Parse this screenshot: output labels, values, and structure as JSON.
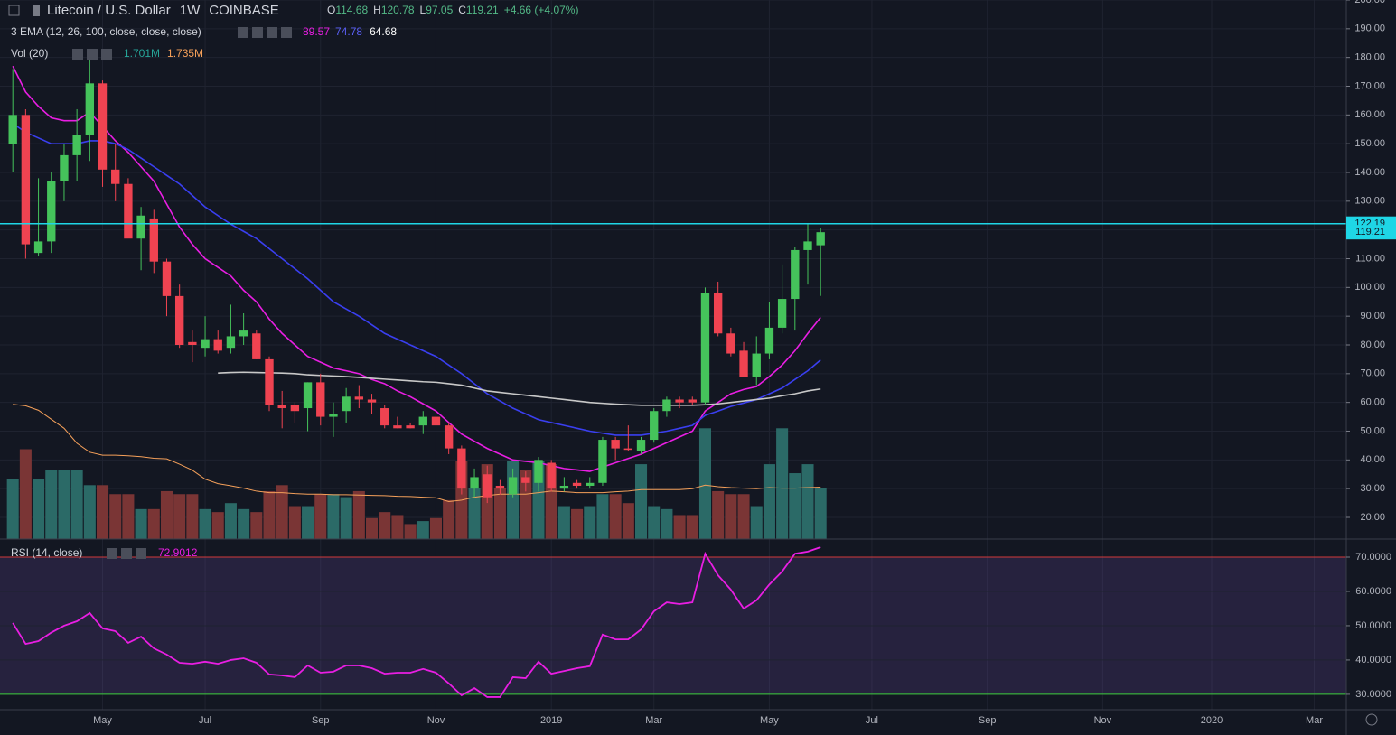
{
  "chart_data": [
    {
      "type": "candlestick",
      "title": "Litecoin / U.S. Dollar",
      "interval": "1W",
      "exchange": "COINBASE",
      "ohlc_labels": [
        "O",
        "H",
        "L",
        "C"
      ],
      "change": "+4.66 (+4.07%)",
      "indicator_label": "3 EMA (12, 26, 100, close, close, close)",
      "x": [
        0,
        1,
        2,
        3,
        4,
        5,
        6,
        7,
        8,
        9,
        10,
        11,
        12,
        13,
        14,
        15,
        16,
        17,
        18,
        19,
        20,
        21,
        22,
        23,
        24,
        25,
        26,
        27,
        28,
        29,
        30,
        31,
        32,
        33,
        34,
        35,
        36,
        37,
        38,
        39,
        40,
        41,
        42,
        43,
        44,
        45,
        46,
        47,
        48,
        49,
        50,
        51,
        52,
        53,
        54,
        55,
        56,
        57,
        58,
        59,
        60,
        61,
        62,
        63
      ],
      "xlim": [
        -1,
        104
      ],
      "xticks": [
        {
          "value": 7,
          "label": "May"
        },
        {
          "value": 15,
          "label": "Jul"
        },
        {
          "value": 24,
          "label": "Sep"
        },
        {
          "value": 33,
          "label": "Nov"
        },
        {
          "value": 42,
          "label": "2019"
        },
        {
          "value": 50,
          "label": "Mar"
        },
        {
          "value": 59,
          "label": "May"
        },
        {
          "value": 67,
          "label": "Jul"
        },
        {
          "value": 76,
          "label": "Sep"
        },
        {
          "value": 85,
          "label": "Nov"
        },
        {
          "value": 93.5,
          "label": "2020"
        },
        {
          "value": 101.5,
          "label": "Mar"
        }
      ],
      "open": [
        150,
        160,
        112,
        116,
        137,
        146,
        153,
        171,
        141,
        136,
        117,
        124,
        109,
        97,
        81,
        79,
        82,
        79,
        83,
        84,
        75,
        59,
        59,
        58,
        67,
        55,
        57,
        62,
        61,
        58,
        52,
        52,
        52,
        55,
        52,
        44,
        30,
        35,
        31,
        28,
        34,
        32,
        39,
        30,
        32,
        31,
        32,
        47,
        44,
        43,
        47,
        57,
        61,
        61,
        60,
        98,
        84,
        78,
        69,
        77,
        86,
        96,
        113,
        114.68
      ],
      "high": [
        176,
        162,
        138,
        140,
        150,
        162,
        180,
        172,
        150,
        138,
        128,
        127,
        110,
        101,
        85,
        90,
        85,
        94,
        91,
        85,
        76,
        64,
        60,
        67,
        70,
        60,
        65,
        66,
        63,
        59,
        55,
        53,
        57,
        57,
        53,
        45,
        37,
        38,
        33,
        37,
        36,
        41,
        40,
        34,
        33,
        34,
        48,
        48,
        52,
        48,
        58,
        62,
        62,
        62,
        100,
        102,
        86,
        81,
        83,
        95,
        108,
        114,
        122,
        120.78
      ],
      "low": [
        140,
        110,
        111,
        112,
        130,
        137,
        144,
        135,
        130,
        118,
        106,
        105,
        90,
        79,
        74,
        76,
        77,
        77,
        80,
        75,
        57,
        51,
        53,
        50,
        52,
        48,
        53,
        58,
        56,
        51,
        51,
        51,
        49,
        52,
        42,
        28,
        27,
        25,
        28,
        27,
        29,
        29,
        29,
        29,
        30,
        30,
        31,
        40,
        43,
        42,
        46,
        55,
        58,
        59,
        59,
        83,
        76,
        69,
        66,
        75,
        84,
        85,
        101,
        97.05
      ],
      "close": [
        160,
        115,
        116,
        137,
        146,
        153,
        171,
        141,
        136,
        117,
        125,
        109,
        97,
        80,
        80,
        82,
        78,
        83,
        85,
        75,
        59,
        58,
        57,
        67,
        55,
        56,
        62,
        61,
        60,
        52,
        51,
        51,
        55,
        52,
        44,
        30,
        34,
        27,
        30,
        34,
        32,
        40,
        30,
        31,
        31,
        32,
        47,
        44,
        43.5,
        47,
        57,
        61,
        60,
        60,
        98,
        84,
        77,
        69,
        77,
        86,
        96,
        113,
        116,
        119.21
      ],
      "up_color": "#45c35b",
      "down_color": "#ef4351",
      "ylim": [
        12.46,
        200
      ],
      "yticks": [
        {
          "value": 20,
          "label": "20.00"
        },
        {
          "value": 30,
          "label": "30.00"
        },
        {
          "value": 40,
          "label": "40.00"
        },
        {
          "value": 50,
          "label": "50.00"
        },
        {
          "value": 60,
          "label": "60.00"
        },
        {
          "value": 70,
          "label": "70.00"
        },
        {
          "value": 80,
          "label": "80.00"
        },
        {
          "value": 90,
          "label": "90.00"
        },
        {
          "value": 100,
          "label": "100.00"
        },
        {
          "value": 110,
          "label": "110.00"
        },
        {
          "value": 120,
          "label": "120.00"
        },
        {
          "value": 130,
          "label": "130.00"
        },
        {
          "value": 140,
          "label": "140.00"
        },
        {
          "value": 150,
          "label": "150.00"
        },
        {
          "value": 160,
          "label": "160.00"
        },
        {
          "value": 170,
          "label": "170.00"
        },
        {
          "value": 180,
          "label": "180.00"
        },
        {
          "value": 190,
          "label": "190.00"
        },
        {
          "value": 200,
          "label": "200.00"
        }
      ],
      "grid": true,
      "price_line": {
        "value": 122.19,
        "color": "#1fd6e6"
      },
      "ema": [
        {
          "color": "#e91ee3",
          "values": [
            177,
            168,
            163,
            159,
            158,
            158,
            161,
            156,
            151,
            147,
            142,
            137,
            129,
            121,
            115,
            110,
            107,
            104,
            99,
            95,
            89,
            84,
            80,
            76,
            74,
            72,
            71,
            70,
            68,
            66.5,
            64,
            62,
            59.5,
            57,
            53,
            49,
            46.5,
            44,
            42,
            40,
            39.5,
            39,
            38,
            37,
            36.5,
            36,
            37.5,
            39,
            40.5,
            42,
            44,
            46,
            48,
            50,
            57,
            60,
            63,
            64.5,
            65.5,
            69,
            73,
            78,
            84,
            89.57
          ]
        },
        {
          "color": "#3a3ff0",
          "values": [
            157,
            154,
            152,
            150,
            150,
            150,
            151,
            151,
            150,
            148,
            145,
            142,
            139,
            136,
            132,
            128,
            125,
            122,
            119.5,
            117,
            113.5,
            110,
            106.5,
            103,
            99,
            95,
            92.5,
            90,
            87,
            84,
            82,
            80,
            78,
            76,
            73,
            70,
            66.5,
            63,
            60.5,
            58,
            56,
            54,
            53,
            52,
            51,
            50,
            49.3,
            48.6,
            48.6,
            48.6,
            49.3,
            50,
            51,
            52,
            55.5,
            57,
            58.6,
            59.8,
            61,
            63,
            65,
            68,
            71,
            74.78
          ]
        },
        {
          "color": "#c8c8c8",
          "values": [
            null,
            null,
            null,
            null,
            null,
            null,
            null,
            null,
            null,
            null,
            null,
            null,
            null,
            null,
            null,
            null,
            70.2,
            70.4,
            70.5,
            70.4,
            70.3,
            70.2,
            70,
            69.6,
            69.4,
            69.2,
            69,
            68.7,
            68.4,
            68.1,
            67.8,
            67.5,
            67.2,
            67,
            66.5,
            66,
            65,
            64,
            63.5,
            63,
            62.5,
            62,
            61.5,
            61,
            60.5,
            60,
            59.7,
            59.4,
            59.2,
            59,
            59,
            59,
            59,
            59,
            59.2,
            59.5,
            60,
            60.5,
            61,
            61.5,
            62.3,
            63,
            64,
            64.68
          ]
        }
      ],
      "volume": {
        "title": "Vol (20)",
        "legend_value": "1.701M",
        "ylim": [
          0,
          18
        ],
        "up_color": "#2b6a67",
        "down_color": "#7a3535",
        "values": [
          2.0,
          3.0,
          2.0,
          2.3,
          2.3,
          2.3,
          1.8,
          1.8,
          1.5,
          1.5,
          1.0,
          1.0,
          1.6,
          1.5,
          1.5,
          1.0,
          0.9,
          1.2,
          1.0,
          0.9,
          1.6,
          1.8,
          1.1,
          1.1,
          1.5,
          1.5,
          1.4,
          1.6,
          0.7,
          0.9,
          0.8,
          0.5,
          0.6,
          0.7,
          1.3,
          2.6,
          1.7,
          2.5,
          1.7,
          2.6,
          2.3,
          2.6,
          2.5,
          1.1,
          1.0,
          1.1,
          1.5,
          1.5,
          1.2,
          2.5,
          1.1,
          1.0,
          0.8,
          0.8,
          3.7,
          1.6,
          1.5,
          1.5,
          1.1,
          2.5,
          3.7,
          2.2,
          2.5,
          1.701
        ],
        "ma": {
          "legend_value": "1.735M",
          "color": "#f5a05a",
          "values": [
            4.5,
            4.45,
            4.3,
            4.0,
            3.7,
            3.2,
            2.9,
            2.8,
            2.8,
            2.78,
            2.75,
            2.7,
            2.68,
            2.5,
            2.3,
            2.0,
            1.85,
            1.78,
            1.7,
            1.6,
            1.55,
            1.55,
            1.52,
            1.5,
            1.5,
            1.48,
            1.48,
            1.47,
            1.46,
            1.45,
            1.43,
            1.42,
            1.4,
            1.38,
            1.25,
            1.3,
            1.4,
            1.45,
            1.5,
            1.5,
            1.5,
            1.55,
            1.6,
            1.58,
            1.55,
            1.55,
            1.55,
            1.58,
            1.6,
            1.65,
            1.65,
            1.65,
            1.65,
            1.68,
            1.8,
            1.75,
            1.72,
            1.7,
            1.68,
            1.72,
            1.7,
            1.7,
            1.72,
            1.735
          ]
        }
      }
    },
    {
      "type": "line",
      "title": "RSI (14, close)",
      "color": "#e91ee3",
      "values": [
        50.8,
        44.7,
        45.5,
        48,
        50,
        51.3,
        53.7,
        49.2,
        48.4,
        45,
        46.8,
        43.4,
        41.6,
        39.2,
        38.9,
        39.5,
        38.9,
        40,
        40.5,
        39.2,
        35.8,
        35.5,
        35,
        38.4,
        36.3,
        36.6,
        38.4,
        38.4,
        37.6,
        36,
        36.3,
        36.3,
        37.4,
        36.3,
        33.2,
        29.7,
        31.8,
        29.2,
        29.2,
        35,
        34.7,
        39.5,
        36,
        36.8,
        37.6,
        38.2,
        47.4,
        46,
        46,
        48.9,
        54.2,
        56.8,
        56.3,
        56.8,
        71,
        64.7,
        60.5,
        55,
        57.4,
        62,
        65.8,
        71,
        71.6,
        72.9012
      ],
      "ylim": [
        25.5,
        75
      ],
      "yticks": [
        {
          "value": 30,
          "label": "30.0000"
        },
        {
          "value": 40,
          "label": "40.0000"
        },
        {
          "value": 50,
          "label": "50.0000"
        },
        {
          "value": 60,
          "label": "60.0000"
        },
        {
          "value": 70,
          "label": "70.0000"
        }
      ],
      "bands": [
        {
          "value": 70,
          "color": "#d23a3a"
        },
        {
          "value": 30,
          "color": "#3fcf3f"
        }
      ],
      "band_fill": "#7e57c2"
    }
  ]
}
